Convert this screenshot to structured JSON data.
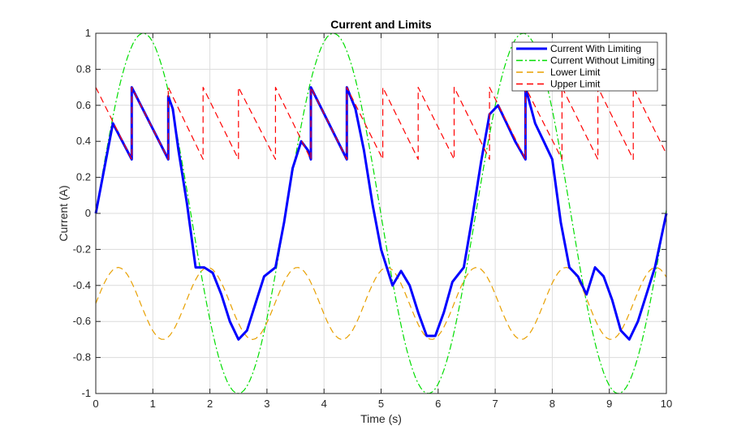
{
  "chart_data": {
    "type": "line",
    "title": "Current and Limits",
    "xlabel": "Time (s)",
    "ylabel": "Current (A)",
    "xlim": [
      0,
      10
    ],
    "ylim": [
      -1,
      1
    ],
    "grid": true,
    "legend_position": "top-right",
    "x_ticks": [
      0,
      1,
      2,
      3,
      4,
      5,
      6,
      7,
      8,
      9,
      10
    ],
    "x_tick_labels": [
      "0",
      "1",
      "2",
      "3",
      "4",
      "5",
      "6",
      "7",
      "8",
      "9",
      "10"
    ],
    "y_ticks": [
      -1,
      -0.8,
      -0.6,
      -0.4,
      -0.2,
      0,
      0.2,
      0.4,
      0.6,
      0.8,
      1
    ],
    "y_tick_labels": [
      "-1",
      "-0.8",
      "-0.6",
      "-0.4",
      "-0.2",
      "0",
      "0.2",
      "0.4",
      "0.6",
      "0.8",
      "1"
    ],
    "series": [
      {
        "name": "Current With Limiting",
        "color": "#0000ff",
        "style": "solid",
        "x": [
          0,
          0.3,
          0.63,
          0.63,
          1.27,
          1.27,
          1.35,
          1.45,
          1.6,
          1.75,
          1.9,
          2.05,
          2.2,
          2.35,
          2.5,
          2.65,
          2.8,
          2.95,
          3.15,
          3.3,
          3.45,
          3.6,
          3.72,
          3.77,
          3.77,
          4.4,
          4.4,
          4.55,
          4.7,
          4.85,
          5.0,
          5.2,
          5.35,
          5.5,
          5.65,
          5.8,
          5.95,
          6.1,
          6.25,
          6.45,
          6.6,
          6.75,
          6.9,
          7.05,
          7.2,
          7.35,
          7.53,
          7.53,
          7.7,
          7.85,
          8.0,
          8.15,
          8.3,
          8.45,
          8.6,
          8.75,
          8.9,
          9.05,
          9.2,
          9.35,
          9.5,
          9.65,
          9.8,
          10.0
        ],
        "y": [
          0,
          0.5,
          0.3,
          0.7,
          0.3,
          0.65,
          0.58,
          0.35,
          0.05,
          -0.3,
          -0.3,
          -0.33,
          -0.45,
          -0.6,
          -0.7,
          -0.65,
          -0.5,
          -0.35,
          -0.3,
          -0.05,
          0.25,
          0.4,
          0.35,
          0.3,
          0.7,
          0.3,
          0.7,
          0.58,
          0.35,
          0.05,
          -0.2,
          -0.4,
          -0.32,
          -0.4,
          -0.55,
          -0.68,
          -0.68,
          -0.55,
          -0.38,
          -0.3,
          -0.02,
          0.28,
          0.55,
          0.6,
          0.5,
          0.4,
          0.3,
          0.7,
          0.5,
          0.4,
          0.3,
          -0.05,
          -0.3,
          -0.35,
          -0.45,
          -0.3,
          -0.35,
          -0.48,
          -0.65,
          -0.7,
          -0.6,
          -0.45,
          -0.3,
          0
        ]
      },
      {
        "name": "Current Without Limiting",
        "color": "#00dd00",
        "style": "dashdot",
        "amplitude": 1,
        "period": 3.33,
        "x_samples": 201
      },
      {
        "name": "Lower Limit",
        "color": "#e8a000",
        "style": "dashed",
        "offset": -0.5,
        "amplitude": 0.2,
        "period": 1.57,
        "x_samples": 201
      },
      {
        "name": "Upper Limit",
        "color": "#ff0000",
        "style": "dashed",
        "x": [
          0,
          0.63,
          0.63,
          1.27,
          1.27,
          1.88,
          1.88,
          2.5,
          2.5,
          3.15,
          3.15,
          3.77,
          3.77,
          4.4,
          4.4,
          5.03,
          5.03,
          5.65,
          5.65,
          6.28,
          6.28,
          6.9,
          6.9,
          7.53,
          7.53,
          8.17,
          8.17,
          8.8,
          8.8,
          9.42,
          9.42,
          10.0
        ],
        "y": [
          0.7,
          0.3,
          0.7,
          0.3,
          0.7,
          0.3,
          0.7,
          0.3,
          0.7,
          0.3,
          0.7,
          0.3,
          0.7,
          0.3,
          0.7,
          0.3,
          0.7,
          0.3,
          0.7,
          0.3,
          0.7,
          0.3,
          0.7,
          0.3,
          0.7,
          0.3,
          0.7,
          0.3,
          0.7,
          0.3,
          0.7,
          0.33
        ]
      }
    ]
  }
}
